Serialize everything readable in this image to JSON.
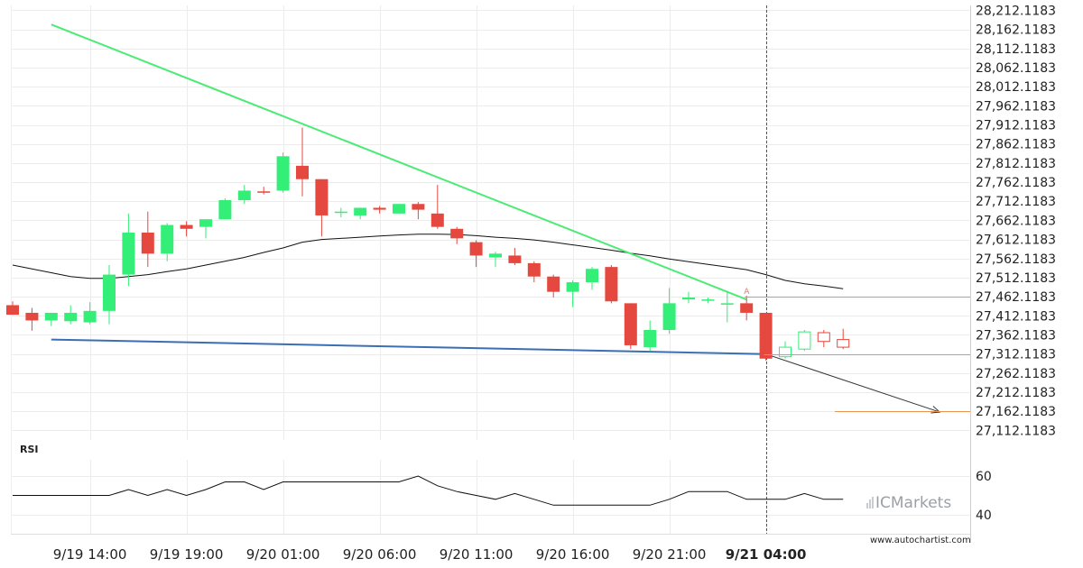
{
  "chart_data": {
    "type": "candlestick",
    "price_axis": {
      "ticks": [
        "28,212.1183",
        "28,162.1183",
        "28,112.1183",
        "28,062.1183",
        "28,012.1183",
        "27,962.1183",
        "27,912.1183",
        "27,862.1183",
        "27,812.1183",
        "27,762.1183",
        "27,712.1183",
        "27,662.1183",
        "27,612.1183",
        "27,562.1183",
        "27,512.1183",
        "27,462.1183",
        "27,412.1183",
        "27,362.1183",
        "27,312.1183",
        "27,262.1183",
        "27,212.1183",
        "27,162.1183",
        "27,112.1183"
      ],
      "tick_values": [
        28212.1183,
        28162.1183,
        28112.1183,
        28062.1183,
        28012.1183,
        27962.1183,
        27912.1183,
        27862.1183,
        27812.1183,
        27762.1183,
        27712.1183,
        27662.1183,
        27612.1183,
        27562.1183,
        27512.1183,
        27462.1183,
        27412.1183,
        27362.1183,
        27312.1183,
        27262.1183,
        27212.1183,
        27162.1183,
        27112.1183
      ],
      "range": [
        27087,
        28225
      ]
    },
    "time_axis": {
      "labels": [
        "9/19 14:00",
        "9/19 19:00",
        "9/20 01:00",
        "9/20 06:00",
        "9/20 11:00",
        "9/20 16:00",
        "9/20 21:00",
        "9/21 04:00"
      ],
      "label_bars": [
        4,
        9,
        14,
        19,
        24,
        29,
        34,
        39
      ],
      "highlight": "9/21 04:00"
    },
    "candles": [
      {
        "o": 27440,
        "h": 27450,
        "l": 27415,
        "c": 27415
      },
      {
        "o": 27420,
        "h": 27433,
        "l": 27373,
        "c": 27400
      },
      {
        "o": 27400,
        "h": 27420,
        "l": 27385,
        "c": 27420
      },
      {
        "o": 27398,
        "h": 27440,
        "l": 27390,
        "c": 27420
      },
      {
        "o": 27395,
        "h": 27448,
        "l": 27390,
        "c": 27425
      },
      {
        "o": 27425,
        "h": 27545,
        "l": 27390,
        "c": 27520
      },
      {
        "o": 27520,
        "h": 27680,
        "l": 27490,
        "c": 27630
      },
      {
        "o": 27630,
        "h": 27685,
        "l": 27540,
        "c": 27575
      },
      {
        "o": 27575,
        "h": 27655,
        "l": 27555,
        "c": 27650
      },
      {
        "o": 27650,
        "h": 27660,
        "l": 27620,
        "c": 27640
      },
      {
        "o": 27645,
        "h": 27665,
        "l": 27615,
        "c": 27665
      },
      {
        "o": 27665,
        "h": 27720,
        "l": 27665,
        "c": 27715
      },
      {
        "o": 27715,
        "h": 27755,
        "l": 27705,
        "c": 27740
      },
      {
        "o": 27738,
        "h": 27750,
        "l": 27730,
        "c": 27735
      },
      {
        "o": 27740,
        "h": 27840,
        "l": 27735,
        "c": 27830
      },
      {
        "o": 27805,
        "h": 27905,
        "l": 27725,
        "c": 27770
      },
      {
        "o": 27770,
        "h": 27770,
        "l": 27620,
        "c": 27675
      },
      {
        "o": 27685,
        "h": 27695,
        "l": 27670,
        "c": 27685
      },
      {
        "o": 27675,
        "h": 27695,
        "l": 27665,
        "c": 27695
      },
      {
        "o": 27695,
        "h": 27700,
        "l": 27680,
        "c": 27690
      },
      {
        "o": 27680,
        "h": 27705,
        "l": 27680,
        "c": 27705
      },
      {
        "o": 27705,
        "h": 27710,
        "l": 27665,
        "c": 27690
      },
      {
        "o": 27680,
        "h": 27755,
        "l": 27640,
        "c": 27645
      },
      {
        "o": 27640,
        "h": 27645,
        "l": 27600,
        "c": 27615
      },
      {
        "o": 27605,
        "h": 27610,
        "l": 27540,
        "c": 27570
      },
      {
        "o": 27565,
        "h": 27580,
        "l": 27540,
        "c": 27575
      },
      {
        "o": 27570,
        "h": 27590,
        "l": 27545,
        "c": 27550
      },
      {
        "o": 27550,
        "h": 27555,
        "l": 27500,
        "c": 27515
      },
      {
        "o": 27515,
        "h": 27520,
        "l": 27460,
        "c": 27475
      },
      {
        "o": 27475,
        "h": 27505,
        "l": 27435,
        "c": 27500
      },
      {
        "o": 27500,
        "h": 27540,
        "l": 27480,
        "c": 27535
      },
      {
        "o": 27540,
        "h": 27545,
        "l": 27445,
        "c": 27450
      },
      {
        "o": 27445,
        "h": 27445,
        "l": 27325,
        "c": 27335
      },
      {
        "o": 27330,
        "h": 27400,
        "l": 27320,
        "c": 27375
      },
      {
        "o": 27375,
        "h": 27485,
        "l": 27365,
        "c": 27445
      },
      {
        "o": 27455,
        "h": 27475,
        "l": 27445,
        "c": 27460
      },
      {
        "o": 27455,
        "h": 27460,
        "l": 27445,
        "c": 27455
      },
      {
        "o": 27445,
        "h": 27475,
        "l": 27395,
        "c": 27445
      },
      {
        "o": 27445,
        "h": 27465,
        "l": 27400,
        "c": 27420
      },
      {
        "o": 27420,
        "h": 27420,
        "l": 27295,
        "c": 27300
      },
      {
        "o": 27305,
        "h": 27345,
        "l": 27300,
        "c": 27330
      },
      {
        "o": 27325,
        "h": 27375,
        "l": 27320,
        "c": 27370
      },
      {
        "o": 27368,
        "h": 27375,
        "l": 27330,
        "c": 27345
      },
      {
        "o": 27350,
        "h": 27378,
        "l": 27325,
        "c": 27330
      }
    ],
    "future_candles_from": 40,
    "moving_average": [
      27545,
      27535,
      27525,
      27515,
      27510,
      27510,
      27515,
      27520,
      27528,
      27535,
      27545,
      27555,
      27565,
      27578,
      27590,
      27605,
      27612,
      27615,
      27618,
      27621,
      27624,
      27626,
      27626,
      27625,
      27622,
      27618,
      27615,
      27611,
      27605,
      27598,
      27591,
      27584,
      27576,
      27569,
      27561,
      27554,
      27547,
      27540,
      27533,
      27520,
      27505,
      27496,
      27490,
      27483
    ],
    "upper_trendline": {
      "from": {
        "bar": 2,
        "price": 28175
      },
      "to": {
        "bar": 38,
        "price": 27455
      }
    },
    "lower_trendline": {
      "from": {
        "bar": 2,
        "price": 27350
      },
      "to": {
        "bar": 39,
        "price": 27312
      }
    },
    "projection_arrow": {
      "from": {
        "bar": 39,
        "price": 27312
      },
      "to": {
        "bar": 48,
        "price": 27160
      }
    },
    "levels": [
      {
        "price": 27462.1183,
        "from_bar": 38
      },
      {
        "price": 27312.1183,
        "from_bar": 39
      },
      {
        "price": 27162.1183,
        "from_bar": 43
      }
    ],
    "vertical_marker_bar": 39,
    "marker_label": "A",
    "rsi": {
      "title": "RSI",
      "ticks": [
        "60",
        "40"
      ],
      "tick_values": [
        60,
        40
      ],
      "values": [
        50,
        50,
        50,
        50,
        50,
        50,
        53,
        50,
        53,
        50,
        53,
        57,
        57,
        53,
        57,
        57,
        57,
        57,
        57,
        57,
        57,
        60,
        55,
        52,
        50,
        48,
        51,
        48,
        45,
        45,
        45,
        45,
        45,
        45,
        48,
        52,
        52,
        52,
        48,
        48,
        48,
        51,
        48,
        48
      ]
    },
    "colors": {
      "bull": "#33ee77",
      "bear": "#e5483f",
      "upper_trend": "#4ceb76",
      "lower_trend": "#3a6fb5",
      "level": "#e59452"
    }
  },
  "footer": {
    "brand": "ICMarkets",
    "url": "www.autochartist.com"
  }
}
